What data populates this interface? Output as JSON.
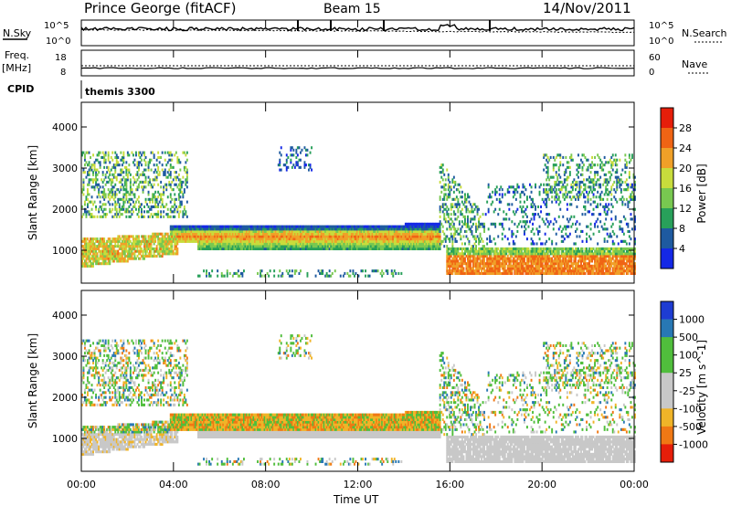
{
  "header": {
    "title": "Prince George (fitACF)",
    "beam": "Beam 15",
    "date": "14/Nov/2011"
  },
  "labels": {
    "nsky": "N.Sky",
    "nsearch": "N.Search",
    "freq": "Freq.",
    "freq_unit": "[MHz]",
    "nave": "Nave",
    "cpid": "CPID",
    "cpid_value": "themis 3300",
    "xlabel": "Time UT"
  },
  "noise_axis": {
    "left_ticks": [
      "10^5",
      "10^0"
    ],
    "right_ticks": [
      "10^5",
      "10^0"
    ]
  },
  "freq_axis": {
    "left_ticks": [
      "18",
      "8"
    ],
    "right_ticks": [
      "60",
      "0"
    ]
  },
  "x_ticks": [
    "00:00",
    "04:00",
    "08:00",
    "12:00",
    "16:00",
    "20:00",
    "00:00"
  ],
  "colors": {
    "c1": "#1428e6",
    "c2": "#1e5aa0",
    "c3": "#28a05a",
    "c4": "#78c850",
    "c5": "#c8dc3c",
    "c6": "#f0a028",
    "c7": "#f06414",
    "c8": "#e61e0a",
    "g1": "#1e3cd2",
    "g2": "#2878b4",
    "g3": "#50be3c",
    "g4": "#c8c8c8",
    "g5": "#f0b428",
    "g6": "#f07814",
    "g7": "#e61e0a"
  },
  "chart_data": [
    {
      "type": "heatmap",
      "panel": "power",
      "ylabel": "Slant Range [km]",
      "xlabel": "Time UT",
      "xlim_hours": [
        0,
        24
      ],
      "ylim": [
        200,
        4600
      ],
      "yticks": [
        1000,
        2000,
        3000,
        4000
      ],
      "colorbar": {
        "label": "Power [dB]",
        "ticks": [
          4,
          8,
          12,
          16,
          20,
          24,
          28
        ]
      },
      "features": [
        {
          "name": "main_band",
          "t_start": 3.8,
          "t_end": 15.5,
          "range_km": [
            1000,
            1600
          ]
        },
        {
          "name": "late_strong_band",
          "t_start": 15.8,
          "t_end": 24,
          "range_km": [
            400,
            1000
          ]
        },
        {
          "name": "early_band",
          "t_start": 0,
          "t_end": 4,
          "range_km": [
            600,
            1200
          ]
        },
        {
          "name": "upper_scatter",
          "t_start": 0,
          "t_end": 4.5,
          "range_km": [
            1800,
            3400
          ]
        }
      ]
    },
    {
      "type": "heatmap",
      "panel": "velocity",
      "ylabel": "Slant Range [km]",
      "xlabel": "Time UT",
      "xlim_hours": [
        0,
        24
      ],
      "ylim": [
        200,
        4600
      ],
      "yticks": [
        1000,
        2000,
        3000,
        4000
      ],
      "colorbar": {
        "label": "Velocity [m s^-1]",
        "ticks": [
          1000,
          500,
          100,
          25,
          -25,
          -100,
          -500,
          -1000
        ]
      }
    }
  ]
}
